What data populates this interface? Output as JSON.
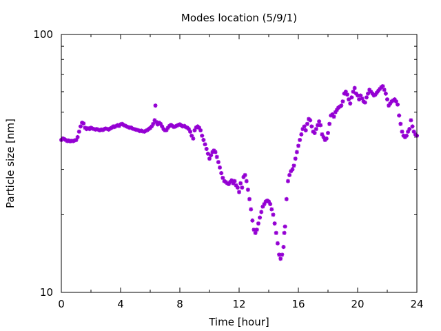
{
  "chart_data": {
    "type": "scatter",
    "title": "Modes location (5/9/1)",
    "xlabel": "Time [hour]",
    "ylabel": "Particle size [nm]",
    "x_scale": "linear",
    "y_scale": "log",
    "xlim": [
      0,
      24
    ],
    "ylim": [
      10,
      100
    ],
    "x_ticks": [
      "0",
      "4",
      "8",
      "12",
      "16",
      "20",
      "24"
    ],
    "y_ticks": [
      "10",
      "100"
    ],
    "marker": "star",
    "color": "#9400d3",
    "grid": false,
    "legend": "none",
    "points": [
      [
        0.0,
        39.0
      ],
      [
        0.1,
        39.5
      ],
      [
        0.2,
        39.3
      ],
      [
        0.3,
        39.0
      ],
      [
        0.4,
        38.6
      ],
      [
        0.5,
        38.8
      ],
      [
        0.6,
        38.5
      ],
      [
        0.7,
        38.7
      ],
      [
        0.8,
        38.6
      ],
      [
        0.9,
        38.8
      ],
      [
        1.0,
        39.0
      ],
      [
        1.1,
        40.0
      ],
      [
        1.2,
        42.0
      ],
      [
        1.3,
        44.0
      ],
      [
        1.4,
        45.5
      ],
      [
        1.5,
        45.2
      ],
      [
        1.6,
        43.5
      ],
      [
        1.7,
        43.0
      ],
      [
        1.8,
        43.3
      ],
      [
        1.9,
        43.0
      ],
      [
        2.0,
        43.5
      ],
      [
        2.1,
        43.2
      ],
      [
        2.2,
        43.0
      ],
      [
        2.3,
        42.8
      ],
      [
        2.4,
        43.0
      ],
      [
        2.5,
        42.7
      ],
      [
        2.6,
        42.5
      ],
      [
        2.7,
        42.8
      ],
      [
        2.8,
        42.6
      ],
      [
        2.9,
        43.0
      ],
      [
        3.0,
        43.2
      ],
      [
        3.1,
        43.0
      ],
      [
        3.2,
        42.8
      ],
      [
        3.3,
        43.2
      ],
      [
        3.4,
        43.5
      ],
      [
        3.5,
        44.0
      ],
      [
        3.6,
        43.8
      ],
      [
        3.7,
        44.2
      ],
      [
        3.8,
        44.5
      ],
      [
        3.9,
        44.2
      ],
      [
        4.0,
        44.8
      ],
      [
        4.1,
        45.0
      ],
      [
        4.2,
        44.6
      ],
      [
        4.3,
        44.3
      ],
      [
        4.4,
        44.0
      ],
      [
        4.5,
        43.8
      ],
      [
        4.6,
        43.5
      ],
      [
        4.7,
        43.6
      ],
      [
        4.8,
        43.2
      ],
      [
        4.9,
        43.0
      ],
      [
        5.0,
        42.8
      ],
      [
        5.1,
        42.7
      ],
      [
        5.2,
        42.5
      ],
      [
        5.3,
        42.2
      ],
      [
        5.4,
        42.4
      ],
      [
        5.5,
        42.1
      ],
      [
        5.6,
        42.0
      ],
      [
        5.7,
        42.3
      ],
      [
        5.8,
        42.6
      ],
      [
        5.9,
        43.0
      ],
      [
        6.0,
        43.4
      ],
      [
        6.1,
        44.0
      ],
      [
        6.2,
        45.0
      ],
      [
        6.3,
        46.5
      ],
      [
        6.35,
        53.0
      ],
      [
        6.4,
        45.8
      ],
      [
        6.5,
        44.8
      ],
      [
        6.6,
        45.5
      ],
      [
        6.7,
        45.0
      ],
      [
        6.8,
        44.0
      ],
      [
        6.9,
        43.0
      ],
      [
        7.0,
        42.5
      ],
      [
        7.1,
        42.6
      ],
      [
        7.2,
        43.5
      ],
      [
        7.3,
        44.2
      ],
      [
        7.4,
        44.6
      ],
      [
        7.5,
        44.2
      ],
      [
        7.6,
        43.8
      ],
      [
        7.7,
        44.0
      ],
      [
        7.8,
        44.3
      ],
      [
        7.9,
        44.6
      ],
      [
        8.0,
        44.8
      ],
      [
        8.1,
        44.4
      ],
      [
        8.2,
        44.0
      ],
      [
        8.3,
        44.2
      ],
      [
        8.4,
        43.8
      ],
      [
        8.5,
        43.5
      ],
      [
        8.6,
        43.0
      ],
      [
        8.7,
        42.0
      ],
      [
        8.8,
        40.5
      ],
      [
        8.9,
        39.5
      ],
      [
        9.0,
        42.5
      ],
      [
        9.1,
        43.6
      ],
      [
        9.2,
        44.0
      ],
      [
        9.3,
        43.5
      ],
      [
        9.4,
        42.5
      ],
      [
        9.5,
        40.5
      ],
      [
        9.6,
        39.0
      ],
      [
        9.7,
        37.5
      ],
      [
        9.8,
        36.0
      ],
      [
        9.9,
        34.5
      ],
      [
        10.0,
        33.0
      ],
      [
        10.1,
        34.0
      ],
      [
        10.2,
        35.0
      ],
      [
        10.3,
        35.5
      ],
      [
        10.4,
        35.0
      ],
      [
        10.5,
        33.5
      ],
      [
        10.6,
        32.0
      ],
      [
        10.7,
        30.5
      ],
      [
        10.8,
        29.0
      ],
      [
        10.9,
        27.8
      ],
      [
        11.0,
        27.0
      ],
      [
        11.1,
        26.8
      ],
      [
        11.2,
        26.5
      ],
      [
        11.3,
        26.3
      ],
      [
        11.4,
        26.8
      ],
      [
        11.5,
        27.2
      ],
      [
        11.6,
        26.5
      ],
      [
        11.7,
        27.0
      ],
      [
        11.8,
        26.0
      ],
      [
        11.9,
        25.5
      ],
      [
        12.0,
        24.5
      ],
      [
        12.1,
        26.5
      ],
      [
        12.2,
        25.5
      ],
      [
        12.3,
        28.0
      ],
      [
        12.4,
        28.5
      ],
      [
        12.5,
        27.0
      ],
      [
        12.6,
        25.0
      ],
      [
        12.7,
        23.0
      ],
      [
        12.8,
        21.0
      ],
      [
        12.9,
        19.0
      ],
      [
        13.0,
        17.5
      ],
      [
        13.1,
        17.0
      ],
      [
        13.2,
        17.5
      ],
      [
        13.3,
        18.5
      ],
      [
        13.4,
        19.5
      ],
      [
        13.5,
        20.5
      ],
      [
        13.6,
        21.5
      ],
      [
        13.7,
        22.0
      ],
      [
        13.8,
        22.5
      ],
      [
        13.9,
        22.7
      ],
      [
        14.0,
        22.5
      ],
      [
        14.1,
        22.0
      ],
      [
        14.2,
        21.0
      ],
      [
        14.3,
        20.0
      ],
      [
        14.4,
        18.5
      ],
      [
        14.5,
        17.0
      ],
      [
        14.6,
        15.5
      ],
      [
        14.7,
        14.0
      ],
      [
        14.8,
        13.5
      ],
      [
        14.9,
        14.0
      ],
      [
        15.0,
        15.0
      ],
      [
        15.05,
        17.0
      ],
      [
        15.1,
        18.0
      ],
      [
        15.2,
        23.0
      ],
      [
        15.3,
        27.0
      ],
      [
        15.4,
        28.5
      ],
      [
        15.5,
        29.5
      ],
      [
        15.6,
        30.0
      ],
      [
        15.7,
        31.0
      ],
      [
        15.8,
        33.0
      ],
      [
        15.9,
        35.0
      ],
      [
        16.0,
        37.0
      ],
      [
        16.1,
        39.0
      ],
      [
        16.2,
        41.0
      ],
      [
        16.3,
        43.0
      ],
      [
        16.4,
        44.0
      ],
      [
        16.5,
        42.5
      ],
      [
        16.6,
        45.0
      ],
      [
        16.7,
        47.0
      ],
      [
        16.8,
        46.5
      ],
      [
        16.9,
        44.0
      ],
      [
        17.0,
        42.0
      ],
      [
        17.1,
        41.5
      ],
      [
        17.2,
        43.0
      ],
      [
        17.3,
        44.5
      ],
      [
        17.4,
        46.0
      ],
      [
        17.5,
        44.5
      ],
      [
        17.6,
        41.0
      ],
      [
        17.7,
        40.0
      ],
      [
        17.8,
        39.0
      ],
      [
        17.9,
        39.5
      ],
      [
        18.0,
        41.5
      ],
      [
        18.1,
        45.0
      ],
      [
        18.2,
        48.5
      ],
      [
        18.3,
        49.0
      ],
      [
        18.4,
        48.0
      ],
      [
        18.5,
        50.0
      ],
      [
        18.6,
        51.0
      ],
      [
        18.7,
        52.0
      ],
      [
        18.8,
        52.5
      ],
      [
        18.9,
        53.0
      ],
      [
        19.0,
        55.0
      ],
      [
        19.1,
        59.0
      ],
      [
        19.2,
        60.0
      ],
      [
        19.3,
        58.5
      ],
      [
        19.4,
        56.0
      ],
      [
        19.5,
        54.0
      ],
      [
        19.6,
        57.0
      ],
      [
        19.7,
        60.0
      ],
      [
        19.8,
        62.0
      ],
      [
        19.9,
        59.0
      ],
      [
        20.0,
        58.0
      ],
      [
        20.1,
        56.0
      ],
      [
        20.2,
        58.0
      ],
      [
        20.3,
        56.5
      ],
      [
        20.4,
        55.0
      ],
      [
        20.5,
        54.5
      ],
      [
        20.6,
        57.0
      ],
      [
        20.7,
        59.0
      ],
      [
        20.8,
        61.0
      ],
      [
        20.9,
        60.0
      ],
      [
        21.0,
        59.0
      ],
      [
        21.1,
        58.0
      ],
      [
        21.2,
        58.5
      ],
      [
        21.3,
        59.5
      ],
      [
        21.4,
        60.5
      ],
      [
        21.5,
        61.5
      ],
      [
        21.6,
        62.5
      ],
      [
        21.7,
        63.0
      ],
      [
        21.8,
        61.0
      ],
      [
        21.9,
        59.0
      ],
      [
        22.0,
        56.0
      ],
      [
        22.1,
        53.0
      ],
      [
        22.2,
        54.0
      ],
      [
        22.3,
        55.0
      ],
      [
        22.4,
        55.5
      ],
      [
        22.5,
        56.0
      ],
      [
        22.6,
        55.0
      ],
      [
        22.7,
        53.5
      ],
      [
        22.8,
        48.5
      ],
      [
        22.9,
        45.0
      ],
      [
        23.0,
        42.0
      ],
      [
        23.1,
        40.5
      ],
      [
        23.2,
        40.0
      ],
      [
        23.3,
        40.5
      ],
      [
        23.4,
        42.0
      ],
      [
        23.5,
        43.0
      ],
      [
        23.6,
        46.5
      ],
      [
        23.7,
        44.0
      ],
      [
        23.8,
        42.0
      ],
      [
        23.9,
        41.0
      ],
      [
        24.0,
        40.5
      ]
    ]
  }
}
